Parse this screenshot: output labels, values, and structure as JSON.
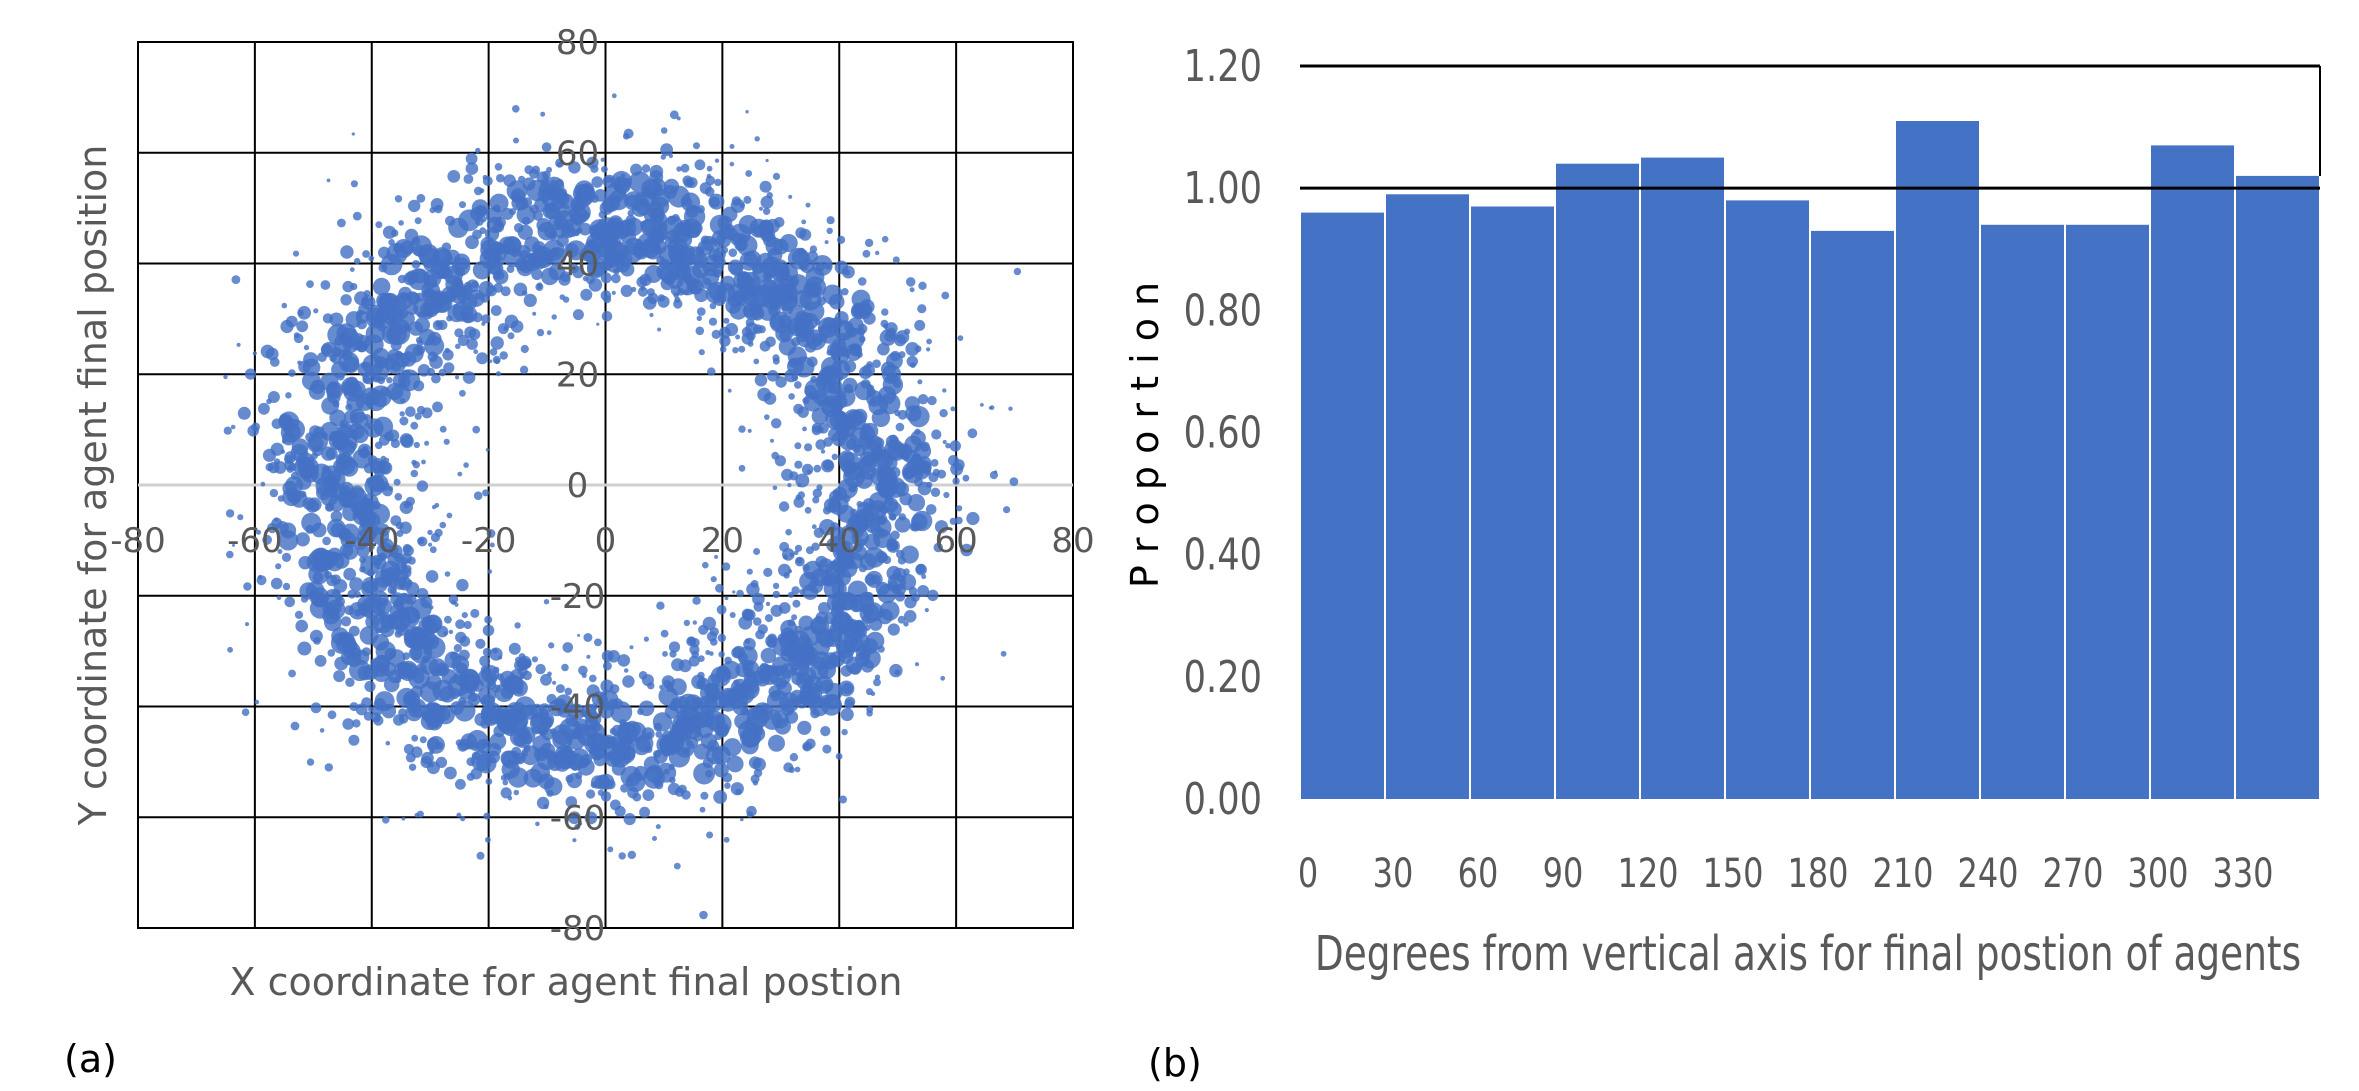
{
  "chart_data": [
    {
      "panel_label": "(a)",
      "type": "scatter",
      "title": "",
      "xlabel": "X coordinate for agent final postion",
      "ylabel": "Y coordinate for agent final position",
      "xlim": [
        -80,
        80
      ],
      "ylim": [
        -80,
        80
      ],
      "x_ticks": [
        "-80",
        "-60",
        "-40",
        "-20",
        "0",
        "20",
        "40",
        "60",
        "80"
      ],
      "y_ticks": [
        "80",
        "60",
        "40",
        "20",
        "0",
        "-20",
        "-40",
        "-60",
        "-80"
      ],
      "grid": true,
      "marker": "bubble",
      "color": "#4472C4",
      "distribution": {
        "shape": "ring",
        "center": [
          0,
          0
        ],
        "peak_radius": 47,
        "spread_sd": 8.5
      },
      "point_count_approx": 2600
    },
    {
      "panel_label": "(b)",
      "type": "bar",
      "title": "",
      "xlabel": "Degrees  from vertical axis for final postion of agents",
      "ylabel": "P r o p o r t i o n",
      "categories": [
        "0",
        "30",
        "60",
        "90",
        "120",
        "150",
        "180",
        "210",
        "240",
        "270",
        "300",
        "330"
      ],
      "values": [
        0.96,
        0.99,
        0.97,
        1.04,
        1.05,
        0.98,
        0.93,
        1.11,
        0.94,
        0.94,
        1.07,
        1.02
      ],
      "ylim": [
        0,
        1.2
      ],
      "y_ticks": [
        "0.00",
        "0.20",
        "0.40",
        "0.60",
        "0.80",
        "1.00",
        "1.20"
      ],
      "reference_line": 1.0,
      "grid": false,
      "color": "#4472C4"
    }
  ]
}
